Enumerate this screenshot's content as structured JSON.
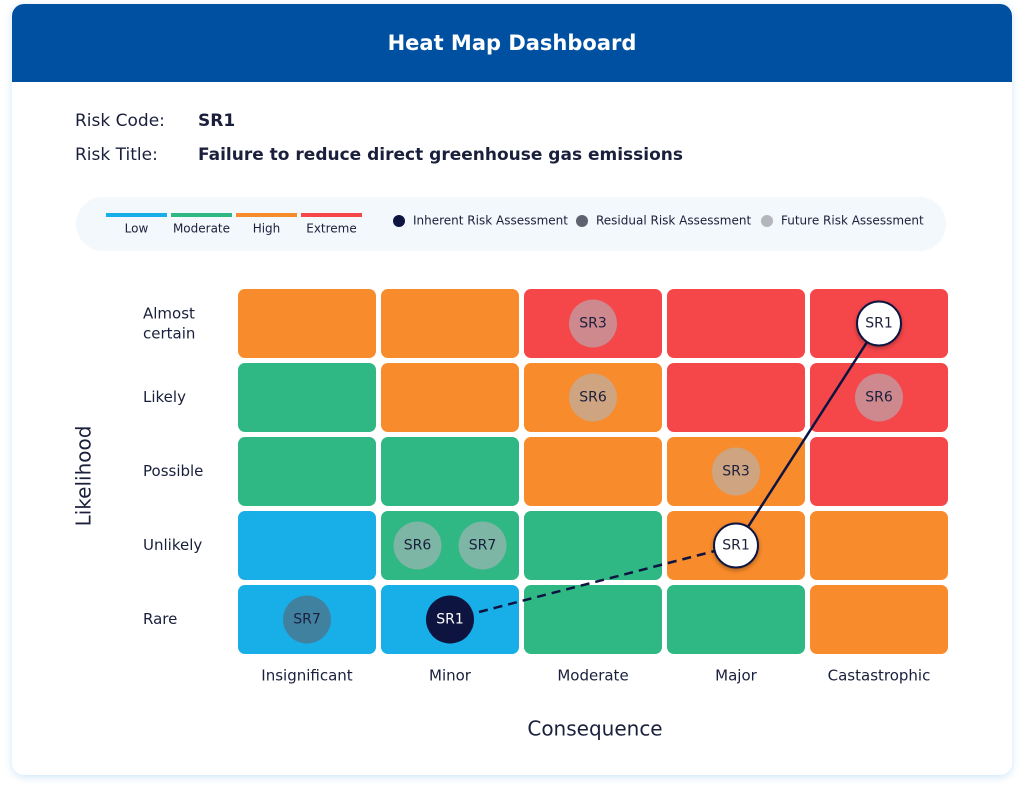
{
  "header": {
    "title": "Heat Map Dashboard"
  },
  "risk": {
    "code_label": "Risk Code:",
    "code": "SR1",
    "title_label": "Risk Title:",
    "title": "Failure to reduce direct greenhouse gas emissions"
  },
  "legend": {
    "levels": [
      {
        "label": "Low",
        "color": "#18aee8"
      },
      {
        "label": "Moderate",
        "color": "#2fb784"
      },
      {
        "label": "High",
        "color": "#f88b2b"
      },
      {
        "label": "Extreme",
        "color": "#f5464a"
      }
    ],
    "assessments": [
      {
        "label": "Inherent Risk Assessment",
        "color": "#0d1440"
      },
      {
        "label": "Residual Risk Assessment",
        "color": "#5e6370"
      },
      {
        "label": "Future Risk Assessment",
        "color": "#b3b6bb"
      }
    ]
  },
  "matrix": {
    "y_label": "Likelihood",
    "x_label": "Consequence",
    "rows": [
      "Almost certain",
      "Likely",
      "Possible",
      "Unlikely",
      "Rare"
    ],
    "columns": [
      "Insignificant",
      "Minor",
      "Moderate",
      "Major",
      "Castastrophic"
    ],
    "levels": [
      [
        2,
        2,
        3,
        3,
        3
      ],
      [
        1,
        2,
        2,
        3,
        3
      ],
      [
        1,
        1,
        2,
        2,
        3
      ],
      [
        0,
        1,
        1,
        2,
        2
      ],
      [
        0,
        0,
        1,
        1,
        2
      ]
    ]
  },
  "markers": [
    {
      "label": "SR3",
      "row": 0,
      "col": 2,
      "assessment": 2,
      "highlight": false
    },
    {
      "label": "SR6",
      "row": 1,
      "col": 2,
      "assessment": 2,
      "highlight": false
    },
    {
      "label": "SR6",
      "row": 1,
      "col": 4,
      "assessment": 2,
      "highlight": false
    },
    {
      "label": "SR3",
      "row": 2,
      "col": 3,
      "assessment": 2,
      "highlight": false
    },
    {
      "label": "SR6",
      "row": 3,
      "col": 1,
      "assessment": 2,
      "highlight": false
    },
    {
      "label": "SR7",
      "row": 3,
      "col": 1,
      "assessment": 2,
      "highlight": false
    },
    {
      "label": "SR7",
      "row": 4,
      "col": 0,
      "assessment": 1,
      "highlight": false
    },
    {
      "label": "SR1",
      "row": 4,
      "col": 1,
      "assessment": 0,
      "highlight": false
    },
    {
      "label": "SR1",
      "row": 3,
      "col": 3,
      "assessment": 1,
      "highlight": true
    },
    {
      "label": "SR1",
      "row": 0,
      "col": 4,
      "assessment": 2,
      "highlight": true
    }
  ],
  "trail": [
    7,
    8,
    9
  ]
}
